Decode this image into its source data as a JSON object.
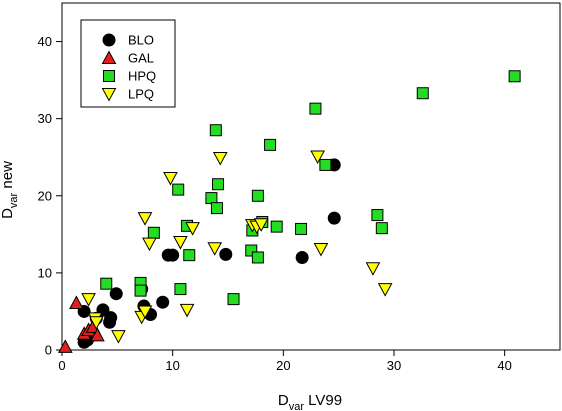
{
  "chart_data": {
    "type": "scatter",
    "xlabel_main": "D",
    "xlabel_sub": "var",
    "xlabel_rest": " LV99",
    "ylabel_main": "D",
    "ylabel_sub": "var",
    "ylabel_rest": " new",
    "xlim": [
      0,
      45
    ],
    "ylim": [
      0,
      45
    ],
    "xticks": [
      0,
      10,
      20,
      30,
      40
    ],
    "yticks": [
      0,
      10,
      20,
      30,
      40
    ],
    "grid": false,
    "legend_position": "top-left",
    "series": [
      {
        "name": "BLO",
        "marker": "circle",
        "color": "#000000",
        "points": [
          [
            2.0,
            1.0
          ],
          [
            2.3,
            1.3
          ],
          [
            2.7,
            2.0
          ],
          [
            2.0,
            5.0
          ],
          [
            3.1,
            4.1
          ],
          [
            3.7,
            5.2
          ],
          [
            4.4,
            4.2
          ],
          [
            4.3,
            3.6
          ],
          [
            4.9,
            7.3
          ],
          [
            7.2,
            7.9
          ],
          [
            7.4,
            5.7
          ],
          [
            8.0,
            4.6
          ],
          [
            9.1,
            6.2
          ],
          [
            9.6,
            12.3
          ],
          [
            10.0,
            12.3
          ],
          [
            14.8,
            12.4
          ],
          [
            21.7,
            12.0
          ],
          [
            24.6,
            17.1
          ],
          [
            24.6,
            24.0
          ]
        ]
      },
      {
        "name": "GAL",
        "marker": "triangle-up",
        "color": "#e0201b",
        "points": [
          [
            0.3,
            0.4
          ],
          [
            1.3,
            6.1
          ],
          [
            2.0,
            2.1
          ],
          [
            2.4,
            2.6
          ],
          [
            2.8,
            3.0
          ],
          [
            3.2,
            1.9
          ]
        ]
      },
      {
        "name": "HPQ",
        "marker": "square",
        "color": "#22dd22",
        "points": [
          [
            4.0,
            8.6
          ],
          [
            7.1,
            8.7
          ],
          [
            7.1,
            7.7
          ],
          [
            8.3,
            15.2
          ],
          [
            10.5,
            20.8
          ],
          [
            10.7,
            7.9
          ],
          [
            11.3,
            16.1
          ],
          [
            11.5,
            12.3
          ],
          [
            13.5,
            19.7
          ],
          [
            13.9,
            28.5
          ],
          [
            14.0,
            18.4
          ],
          [
            14.1,
            21.5
          ],
          [
            15.5,
            6.6
          ],
          [
            17.1,
            12.9
          ],
          [
            17.2,
            15.5
          ],
          [
            17.7,
            20.0
          ],
          [
            17.7,
            12.0
          ],
          [
            18.1,
            16.6
          ],
          [
            18.8,
            26.6
          ],
          [
            19.4,
            16.0
          ],
          [
            21.6,
            15.7
          ],
          [
            22.9,
            31.3
          ],
          [
            23.8,
            24.0
          ],
          [
            28.5,
            17.5
          ],
          [
            28.9,
            15.8
          ],
          [
            32.6,
            33.3
          ],
          [
            40.9,
            35.5
          ]
        ]
      },
      {
        "name": "LPQ",
        "marker": "triangle-down",
        "color": "#ffff00",
        "points": [
          [
            2.4,
            6.6
          ],
          [
            3.0,
            4.1
          ],
          [
            3.1,
            3.6
          ],
          [
            5.1,
            1.8
          ],
          [
            7.2,
            4.3
          ],
          [
            7.5,
            5.0
          ],
          [
            7.5,
            17.1
          ],
          [
            7.9,
            13.8
          ],
          [
            9.8,
            22.3
          ],
          [
            10.7,
            14.0
          ],
          [
            11.3,
            5.2
          ],
          [
            11.8,
            15.8
          ],
          [
            13.8,
            13.2
          ],
          [
            14.3,
            24.9
          ],
          [
            17.2,
            16.2
          ],
          [
            17.6,
            16.0
          ],
          [
            18.0,
            16.3
          ],
          [
            23.1,
            25.1
          ],
          [
            23.4,
            13.1
          ],
          [
            28.1,
            10.6
          ],
          [
            29.2,
            7.9
          ]
        ]
      }
    ]
  }
}
